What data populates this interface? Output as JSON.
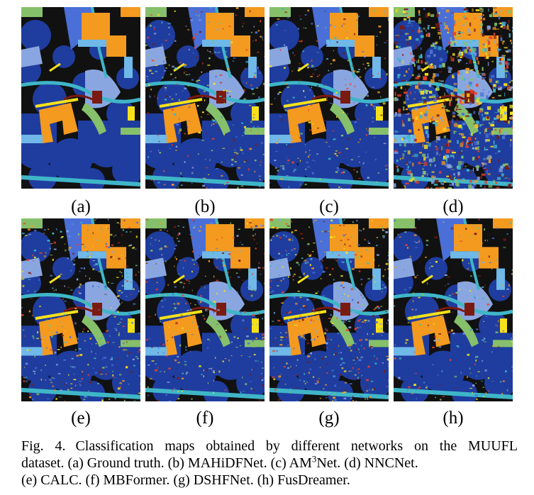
{
  "panels": [
    {
      "label": "(a)"
    },
    {
      "label": "(b)"
    },
    {
      "label": "(c)"
    },
    {
      "label": "(d)"
    },
    {
      "label": "(e)"
    },
    {
      "label": "(f)"
    },
    {
      "label": "(g)"
    },
    {
      "label": "(h)"
    }
  ],
  "caption": {
    "fig_label": "Fig. 4.",
    "line1": "Classification maps obtained by different networks on the MUUFL",
    "line2_a": "dataset. (a) Ground truth. (b) MAHiDFNet. (c) AM",
    "line2_sup": "3",
    "line2_b": "Net. (d) NNCNet.",
    "line3": "(e) CALC. (f) MBFormer. (g) DSHFNet. (h) FusDreamer."
  },
  "colors": {
    "trees": "#1f3d9e",
    "mostly_grass": "#4a6fd6",
    "mixed_ground": "#8aa6e0",
    "dirt_sand": "#86c06a",
    "road": "#3fb6c8",
    "water": "#2f5fd0",
    "building_shadow": "#6fb8e8",
    "buildings": "#f39a1f",
    "sidewalk": "#7a1a10",
    "yellow_curb": "#f5e11a",
    "cloth_panels": "#e8402a",
    "background": "#111111"
  }
}
